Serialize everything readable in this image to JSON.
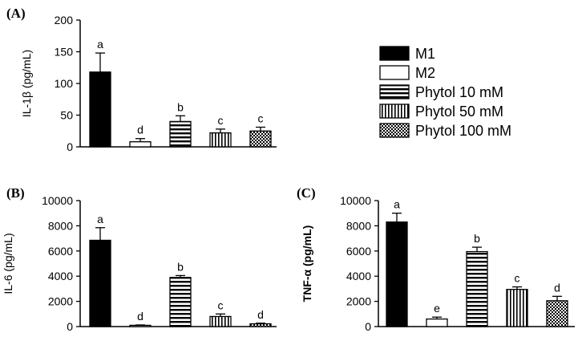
{
  "chart_data": [
    {
      "type": "bar",
      "panel_label": "(A)",
      "ylabel": "IL-1β (pg/mL)",
      "ylim": [
        0,
        200
      ],
      "yticks": [
        "0",
        "50",
        "100",
        "150",
        "200"
      ],
      "categories": [
        "M1",
        "M2",
        "Phytol 10 mM",
        "Phytol 50 mM",
        "Phytol 100 mM"
      ],
      "values": [
        118,
        8,
        40,
        22,
        25
      ],
      "errors": [
        30,
        5,
        9,
        6,
        6
      ],
      "letters": [
        "a",
        "d",
        "b",
        "c",
        "c"
      ]
    },
    {
      "type": "bar",
      "panel_label": "(B)",
      "ylabel": "IL-6 (pg/mL)",
      "ylim": [
        0,
        10000
      ],
      "yticks": [
        "0",
        "2000",
        "4000",
        "6000",
        "8000",
        "10000"
      ],
      "categories": [
        "M1",
        "M2",
        "Phytol 10 mM",
        "Phytol 50 mM",
        "Phytol 100 mM"
      ],
      "values": [
        6850,
        100,
        3900,
        800,
        220
      ],
      "errors": [
        1000,
        30,
        150,
        200,
        50
      ],
      "letters": [
        "a",
        "d",
        "b",
        "c",
        "d"
      ]
    },
    {
      "type": "bar",
      "panel_label": "(C)",
      "ylabel": "TNF-α (pg/mL)",
      "ylim": [
        0,
        10000
      ],
      "yticks": [
        "0",
        "2000",
        "4000",
        "6000",
        "8000",
        "10000"
      ],
      "categories": [
        "M1",
        "M2",
        "Phytol 10 mM",
        "Phytol 50 mM",
        "Phytol 100 mM"
      ],
      "values": [
        8300,
        600,
        5950,
        2950,
        2050
      ],
      "errors": [
        700,
        150,
        350,
        200,
        350
      ],
      "letters": [
        "a",
        "e",
        "b",
        "c",
        "d"
      ]
    }
  ],
  "legend": {
    "position": "top-right",
    "items": [
      {
        "label": "M1",
        "pattern": "solid"
      },
      {
        "label": "M2",
        "pattern": "empty"
      },
      {
        "label": "Phytol 10 mM",
        "pattern": "horizontal"
      },
      {
        "label": "Phytol 50 mM",
        "pattern": "vertical"
      },
      {
        "label": "Phytol 100 mM",
        "pattern": "checker"
      }
    ]
  },
  "colors": {
    "ink": "#000000",
    "background": "#ffffff"
  }
}
